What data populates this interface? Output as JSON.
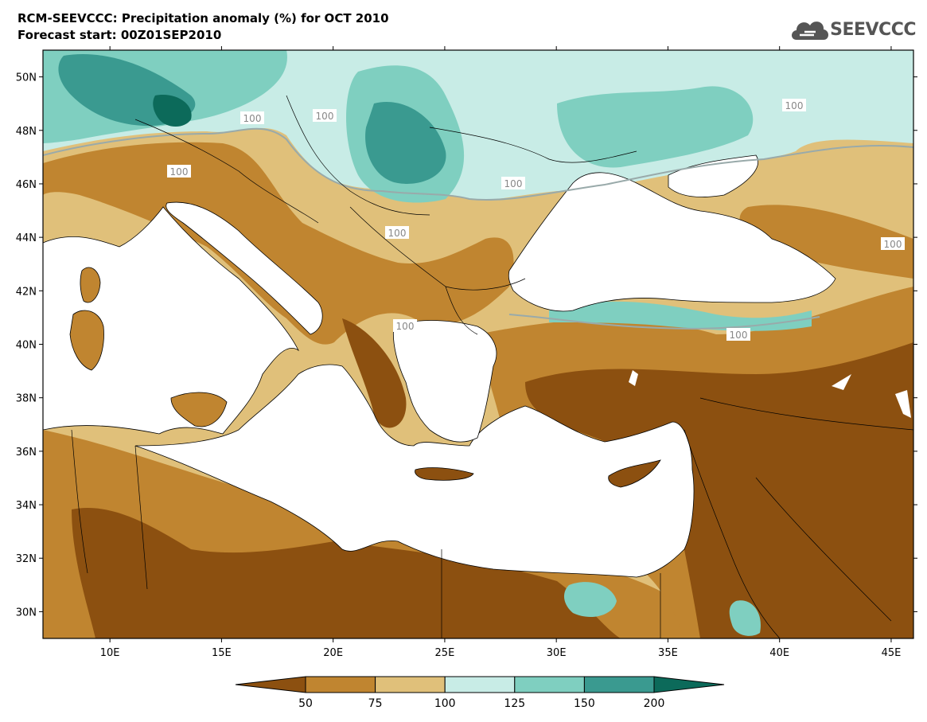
{
  "header": {
    "title": "RCM-SEEVCCC: Precipitation anomaly (%) for OCT 2010",
    "subtitle": "Forecast start: 00Z01SEP2010",
    "logo_text": "SEEVCCC"
  },
  "map": {
    "lon_range": [
      7,
      46
    ],
    "lat_range": [
      29,
      51
    ],
    "lat_ticks": [
      "50N",
      "48N",
      "46N",
      "44N",
      "42N",
      "40N",
      "38N",
      "36N",
      "34N",
      "32N",
      "30N"
    ],
    "lon_ticks": [
      "10E",
      "15E",
      "20E",
      "25E",
      "30E",
      "35E",
      "40E",
      "45E"
    ],
    "contour_labels": [
      "100",
      "100",
      "100",
      "100",
      "100",
      "100",
      "100",
      "100",
      "100"
    ]
  },
  "legend": {
    "labels": [
      "50",
      "75",
      "100",
      "125",
      "150",
      "200"
    ],
    "colors": [
      "#8c5010",
      "#c08530",
      "#e0c07a",
      "#c8ece6",
      "#7fcfc0",
      "#3a9a90",
      "#0c6a5a"
    ]
  },
  "colors": {
    "dry_extreme": "#8c5010",
    "dry": "#c08530",
    "slightly_dry": "#e0c07a",
    "slightly_wet": "#c8ece6",
    "wet": "#7fcfc0",
    "very_wet": "#3a9a90",
    "wet_extreme": "#0c6a5a",
    "sea": "#ffffff"
  }
}
